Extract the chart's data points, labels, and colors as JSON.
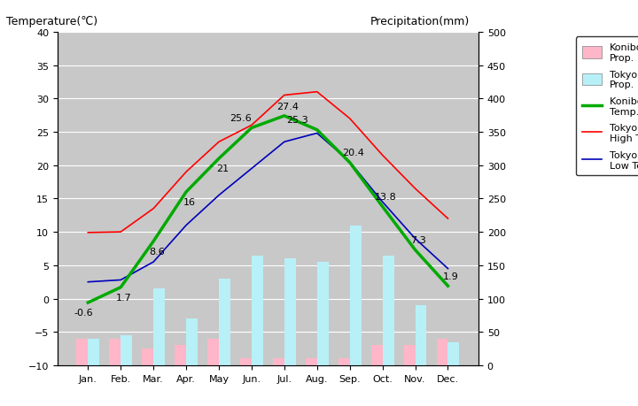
{
  "months": [
    "Jan.",
    "Feb.",
    "Mar.",
    "Apr.",
    "May",
    "Jun.",
    "Jul.",
    "Aug.",
    "Sep.",
    "Oct.",
    "Nov.",
    "Dec."
  ],
  "konibodom_ave_temp": [
    -0.6,
    1.7,
    8.6,
    16,
    21,
    25.6,
    27.4,
    25.3,
    20.4,
    13.8,
    7.3,
    1.9
  ],
  "tokyo_high_temp": [
    9.9,
    10.0,
    13.5,
    19.0,
    23.5,
    26.0,
    30.5,
    31.0,
    27.0,
    21.5,
    16.5,
    12.0
  ],
  "tokyo_low_temp": [
    2.5,
    2.8,
    5.5,
    11.0,
    15.5,
    19.5,
    23.5,
    24.8,
    20.5,
    14.5,
    9.0,
    4.5
  ],
  "konibodom_precip_mm": [
    40,
    40,
    25,
    30,
    40,
    10,
    10,
    10,
    10,
    30,
    30,
    40
  ],
  "tokyo_precip_mm": [
    40,
    45,
    115,
    70,
    130,
    165,
    160,
    155,
    210,
    165,
    90,
    35
  ],
  "temp_ylim": [
    -10,
    40
  ],
  "precip_ylim": [
    0,
    500
  ],
  "title_left": "Temperature(℃)",
  "title_right": "Precipitation(mm)",
  "konibodom_color": "#00aa00",
  "tokyo_high_color": "#ff0000",
  "tokyo_low_color": "#0000bb",
  "konibodom_bar_color": "#ffb6c8",
  "tokyo_bar_color": "#b8f0f8",
  "bg_color": "#c8c8c8",
  "grid_color": "#ffffff",
  "label_offsets_x": [
    -0.15,
    0.1,
    0.1,
    0.1,
    0.1,
    -0.35,
    0.1,
    -0.6,
    0.1,
    0.1,
    0.1,
    0.1
  ],
  "label_offsets_y": [
    -1.5,
    -1.5,
    -1.5,
    -1.5,
    -1.5,
    1.5,
    1.5,
    1.5,
    1.5,
    1.5,
    1.5,
    1.5
  ]
}
